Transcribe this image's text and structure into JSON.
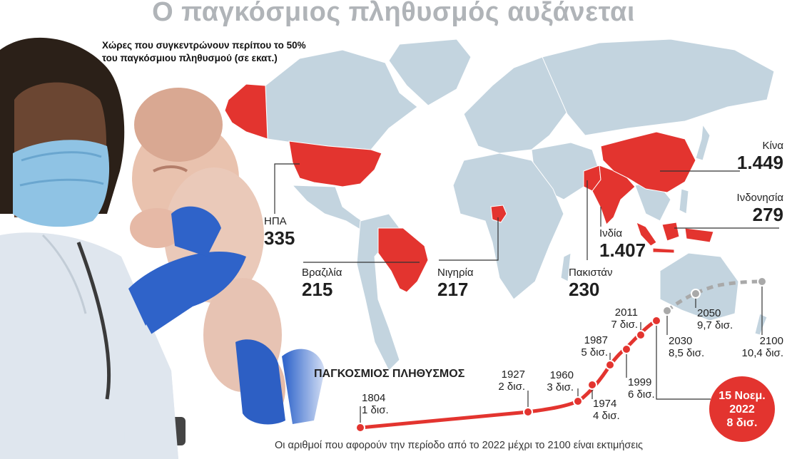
{
  "title": "Ο παγκόσμιος πληθυσμός αυξάνεται",
  "subtitle": "Χώρες που συγκεντρώνουν περίπου το 50% του παγκόσμιου πληθυσμού (σε εκατ.)",
  "countries": [
    {
      "name": "Κίνα",
      "value": "1.449"
    },
    {
      "name": "Ινδονησία",
      "value": "279"
    },
    {
      "name": "Ινδία",
      "value": "1.407"
    },
    {
      "name": "Πακιστάν",
      "value": "230"
    },
    {
      "name": "Νιγηρία",
      "value": "217"
    },
    {
      "name": "Βραζιλία",
      "value": "215"
    },
    {
      "name": "ΗΠΑ",
      "value": "335"
    }
  ],
  "timeline": {
    "title": "ΠΑΓΚΟΣΜΙΟΣ ΠΛΗΘΥΣΜΟΣ",
    "points": [
      {
        "year": "1804",
        "pop": "1 δισ."
      },
      {
        "year": "1927",
        "pop": "2 δισ."
      },
      {
        "year": "1960",
        "pop": "3 δισ."
      },
      {
        "year": "1974",
        "pop": "4 δισ."
      },
      {
        "year": "1987",
        "pop": "5 δισ."
      },
      {
        "year": "1999",
        "pop": "6 δισ."
      },
      {
        "year": "2011",
        "pop": "7 δισ."
      },
      {
        "year": "2030",
        "pop": "8,5 δισ."
      },
      {
        "year": "2050",
        "pop": "9,7 δισ."
      },
      {
        "year": "2100",
        "pop": "10,4 δισ."
      }
    ],
    "today": {
      "line1": "15 Νοεμ.",
      "line2": "2022",
      "line3": "8 δισ."
    }
  },
  "footnote": "Οι αριθμοί που αφορούν την περίοδο από το 2022 μέχρι το 2100 είναι εκτιμήσεις",
  "colors": {
    "land": "#c3d4df",
    "highlight": "#e3342f",
    "curve": "#e3342f",
    "projection": "#a9a9a9"
  }
}
